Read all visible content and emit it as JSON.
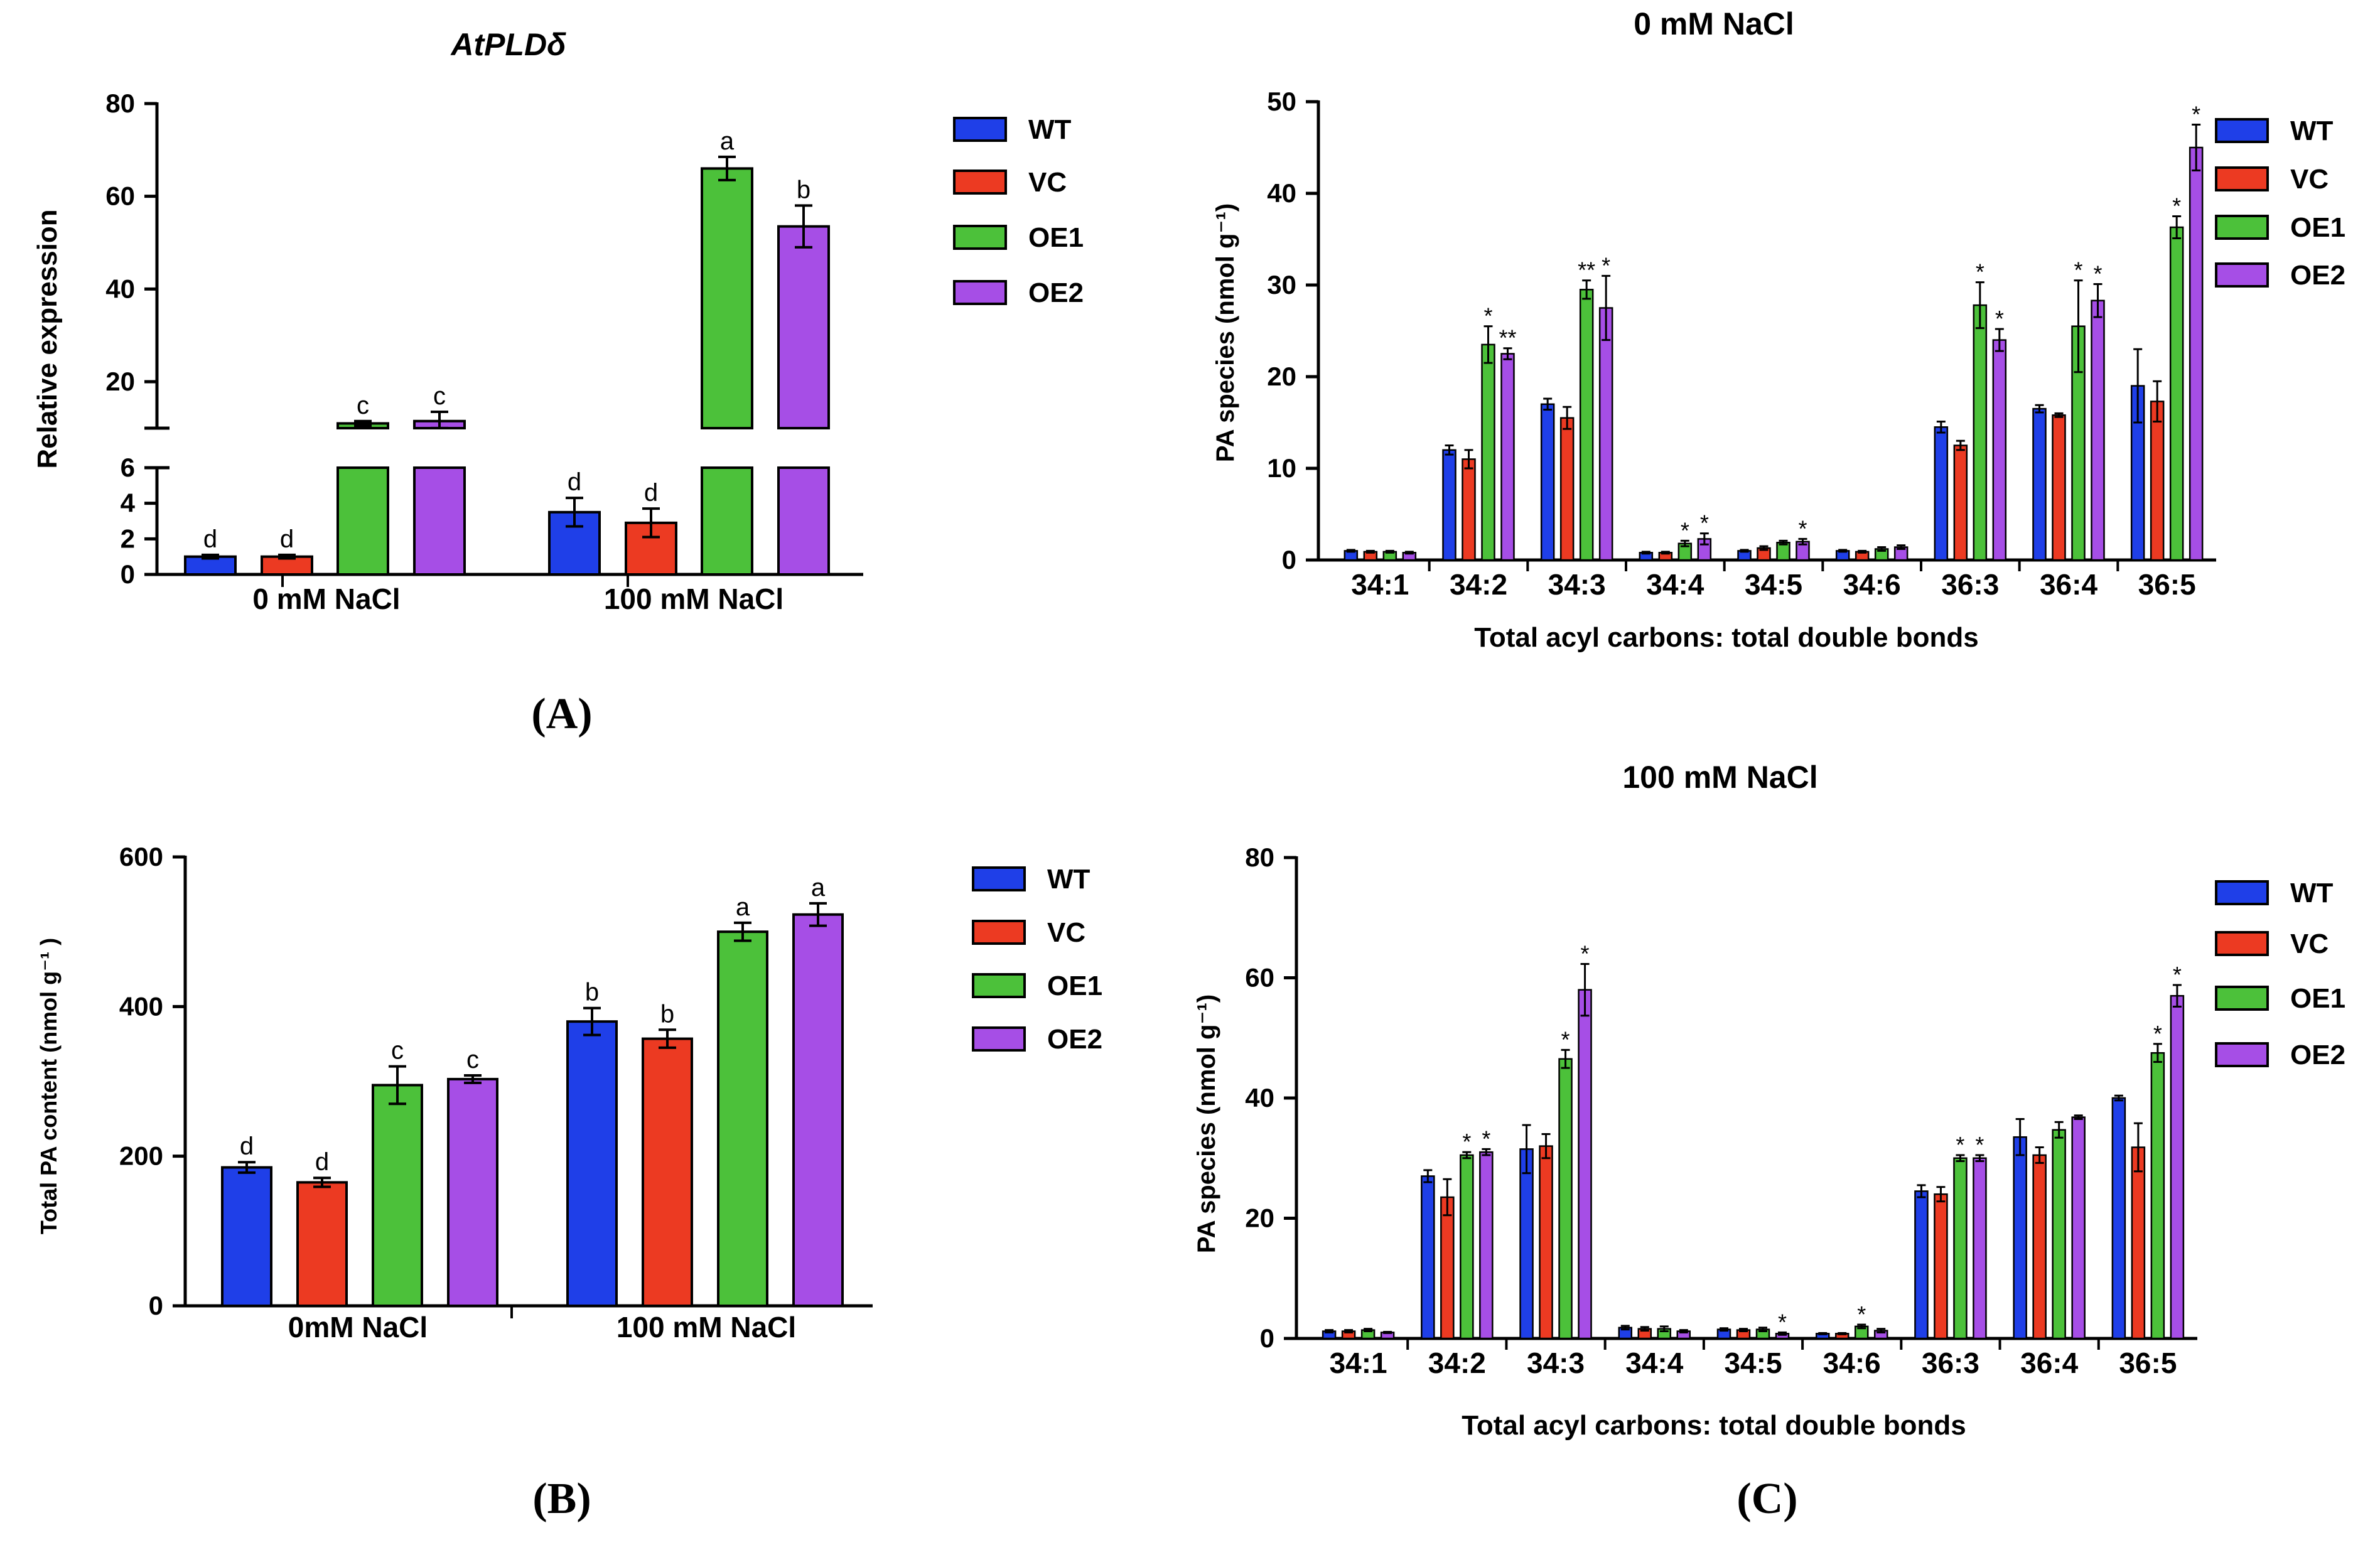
{
  "colors": {
    "WT": "#1f3fe8",
    "VC": "#ec3a22",
    "OE1": "#4cc13a",
    "OE2": "#a64ee6"
  },
  "panel_labels": [
    "(A)",
    "(B)",
    "(C)"
  ],
  "chart_data": [
    {
      "id": "A",
      "type": "bar",
      "title": "AtPLDδ",
      "ylabel": "Relative expression",
      "categories": [
        "0 mM NaCl",
        "100 mM NaCl"
      ],
      "legend": [
        "WT",
        "VC",
        "OE1",
        "OE2"
      ],
      "series": [
        {
          "name": "WT",
          "values": [
            1.0,
            3.5
          ],
          "errors": [
            0.1,
            0.8
          ],
          "letters": [
            "d",
            "d"
          ]
        },
        {
          "name": "VC",
          "values": [
            1.0,
            2.9
          ],
          "errors": [
            0.1,
            0.8
          ],
          "letters": [
            "d",
            "d"
          ]
        },
        {
          "name": "OE1",
          "values": [
            11,
            66
          ],
          "errors": [
            0.5,
            2.5
          ],
          "letters": [
            "c",
            "a"
          ]
        },
        {
          "name": "OE2",
          "values": [
            11.5,
            53.5
          ],
          "errors": [
            2,
            4.5
          ],
          "letters": [
            "c",
            "b"
          ]
        }
      ],
      "y_broken": {
        "lower": [
          0,
          6
        ],
        "upper": [
          10,
          80
        ]
      },
      "lower_ticks": [
        "0",
        "2",
        "4",
        "6"
      ],
      "upper_ticks": [
        "20",
        "40",
        "60",
        "80"
      ]
    },
    {
      "id": "B",
      "type": "bar",
      "title": "",
      "ylabel": "Total PA content (nmol g⁻¹ )",
      "categories": [
        "0mM NaCl",
        "100 mM NaCl"
      ],
      "legend": [
        "WT",
        "VC",
        "OE1",
        "OE2"
      ],
      "series": [
        {
          "name": "WT",
          "values": [
            185,
            380
          ],
          "errors": [
            7,
            18
          ],
          "letters": [
            "d",
            "b"
          ]
        },
        {
          "name": "VC",
          "values": [
            165,
            357
          ],
          "errors": [
            6,
            12
          ],
          "letters": [
            "d",
            "b"
          ]
        },
        {
          "name": "OE1",
          "values": [
            295,
            500
          ],
          "errors": [
            25,
            12
          ],
          "letters": [
            "c",
            "a"
          ]
        },
        {
          "name": "OE2",
          "values": [
            303,
            523
          ],
          "errors": [
            5,
            15
          ],
          "letters": [
            "c",
            "a"
          ]
        }
      ],
      "ylim": [
        0,
        600
      ],
      "yticks": [
        "0",
        "200",
        "400",
        "600"
      ]
    },
    {
      "id": "C1",
      "type": "bar",
      "title": "0 mM NaCl",
      "ylabel": "PA species (nmol g⁻¹)",
      "xlabel": "Total acyl carbons: total double bonds",
      "categories": [
        "34:1",
        "34:2",
        "34:3",
        "34:4",
        "34:5",
        "34:6",
        "36:3",
        "36:4",
        "36:5"
      ],
      "legend": [
        "WT",
        "VC",
        "OE1",
        "OE2"
      ],
      "series": [
        {
          "name": "WT",
          "values": [
            1.0,
            12.0,
            17.0,
            0.8,
            1.0,
            1.0,
            14.5,
            16.5,
            19.0
          ],
          "errors": [
            0.1,
            0.5,
            0.6,
            0.1,
            0.1,
            0.1,
            0.6,
            0.4,
            4.0
          ]
        },
        {
          "name": "VC",
          "values": [
            0.9,
            11.0,
            15.5,
            0.8,
            1.3,
            0.9,
            12.5,
            15.8,
            17.3
          ],
          "errors": [
            0.1,
            1.0,
            1.2,
            0.1,
            0.2,
            0.1,
            0.5,
            0.2,
            2.2
          ]
        },
        {
          "name": "OE1",
          "values": [
            0.9,
            23.5,
            29.5,
            1.8,
            1.9,
            1.2,
            27.8,
            25.5,
            36.3
          ],
          "errors": [
            0.1,
            2.0,
            1.0,
            0.3,
            0.2,
            0.2,
            2.5,
            5.0,
            1.2
          ]
        },
        {
          "name": "OE2",
          "values": [
            0.8,
            22.5,
            27.5,
            2.3,
            2.0,
            1.4,
            24.0,
            28.3,
            45.0
          ],
          "errors": [
            0.1,
            0.6,
            3.5,
            0.6,
            0.3,
            0.2,
            1.2,
            1.8,
            2.5
          ]
        }
      ],
      "stars": [
        {
          "cat": 1,
          "series": "OE1",
          "text": "*"
        },
        {
          "cat": 1,
          "series": "OE2",
          "text": "**"
        },
        {
          "cat": 2,
          "series": "OE1",
          "text": "**"
        },
        {
          "cat": 2,
          "series": "OE2",
          "text": "*"
        },
        {
          "cat": 3,
          "series": "OE1",
          "text": "*"
        },
        {
          "cat": 3,
          "series": "OE2",
          "text": "*"
        },
        {
          "cat": 4,
          "series": "OE2",
          "text": "*"
        },
        {
          "cat": 6,
          "series": "OE1",
          "text": "*"
        },
        {
          "cat": 6,
          "series": "OE2",
          "text": "*"
        },
        {
          "cat": 7,
          "series": "OE1",
          "text": "*"
        },
        {
          "cat": 7,
          "series": "OE2",
          "text": "*"
        },
        {
          "cat": 8,
          "series": "OE1",
          "text": "*"
        },
        {
          "cat": 8,
          "series": "OE2",
          "text": "*"
        }
      ],
      "ylim": [
        0,
        50
      ],
      "yticks": [
        "0",
        "10",
        "20",
        "30",
        "40",
        "50"
      ]
    },
    {
      "id": "C2",
      "type": "bar",
      "title": "100 mM NaCl",
      "ylabel": "PA species (nmol g⁻¹)",
      "xlabel": "Total acyl carbons: total double bonds",
      "categories": [
        "34:1",
        "34:2",
        "34:3",
        "34:4",
        "34:5",
        "34:6",
        "36:3",
        "36:4",
        "36:5"
      ],
      "legend": [
        "WT",
        "VC",
        "OE1",
        "OE2"
      ],
      "series": [
        {
          "name": "WT",
          "values": [
            1.2,
            27.0,
            31.5,
            1.8,
            1.5,
            0.8,
            24.5,
            33.5,
            40.0
          ],
          "errors": [
            0.2,
            1.0,
            4.0,
            0.3,
            0.2,
            0.1,
            1.0,
            3.0,
            0.4
          ]
        },
        {
          "name": "VC",
          "values": [
            1.2,
            23.5,
            32.0,
            1.6,
            1.4,
            0.8,
            24.0,
            30.5,
            31.8
          ],
          "errors": [
            0.2,
            3.0,
            2.0,
            0.3,
            0.2,
            0.1,
            1.2,
            1.3,
            4.0
          ]
        },
        {
          "name": "OE1",
          "values": [
            1.4,
            30.5,
            46.5,
            1.6,
            1.5,
            2.0,
            30.0,
            34.7,
            47.5
          ],
          "errors": [
            0.2,
            0.5,
            1.5,
            0.4,
            0.3,
            0.3,
            0.5,
            1.3,
            1.5
          ]
        },
        {
          "name": "OE2",
          "values": [
            1.0,
            31.0,
            58.0,
            1.2,
            0.8,
            1.3,
            30.0,
            36.8,
            57.0
          ],
          "errors": [
            0.1,
            0.5,
            4.3,
            0.2,
            0.2,
            0.3,
            0.5,
            0.3,
            1.8
          ]
        }
      ],
      "stars": [
        {
          "cat": 1,
          "series": "OE1",
          "text": "*"
        },
        {
          "cat": 1,
          "series": "OE2",
          "text": "*"
        },
        {
          "cat": 2,
          "series": "OE1",
          "text": "*"
        },
        {
          "cat": 2,
          "series": "OE2",
          "text": "*"
        },
        {
          "cat": 4,
          "series": "OE2",
          "text": "*"
        },
        {
          "cat": 5,
          "series": "OE1",
          "text": "*"
        },
        {
          "cat": 6,
          "series": "OE1",
          "text": "*"
        },
        {
          "cat": 6,
          "series": "OE2",
          "text": "*"
        },
        {
          "cat": 8,
          "series": "OE1",
          "text": "*"
        },
        {
          "cat": 8,
          "series": "OE2",
          "text": "*"
        }
      ],
      "ylim": [
        0,
        80
      ],
      "yticks": [
        "0",
        "20",
        "40",
        "60",
        "80"
      ]
    }
  ]
}
